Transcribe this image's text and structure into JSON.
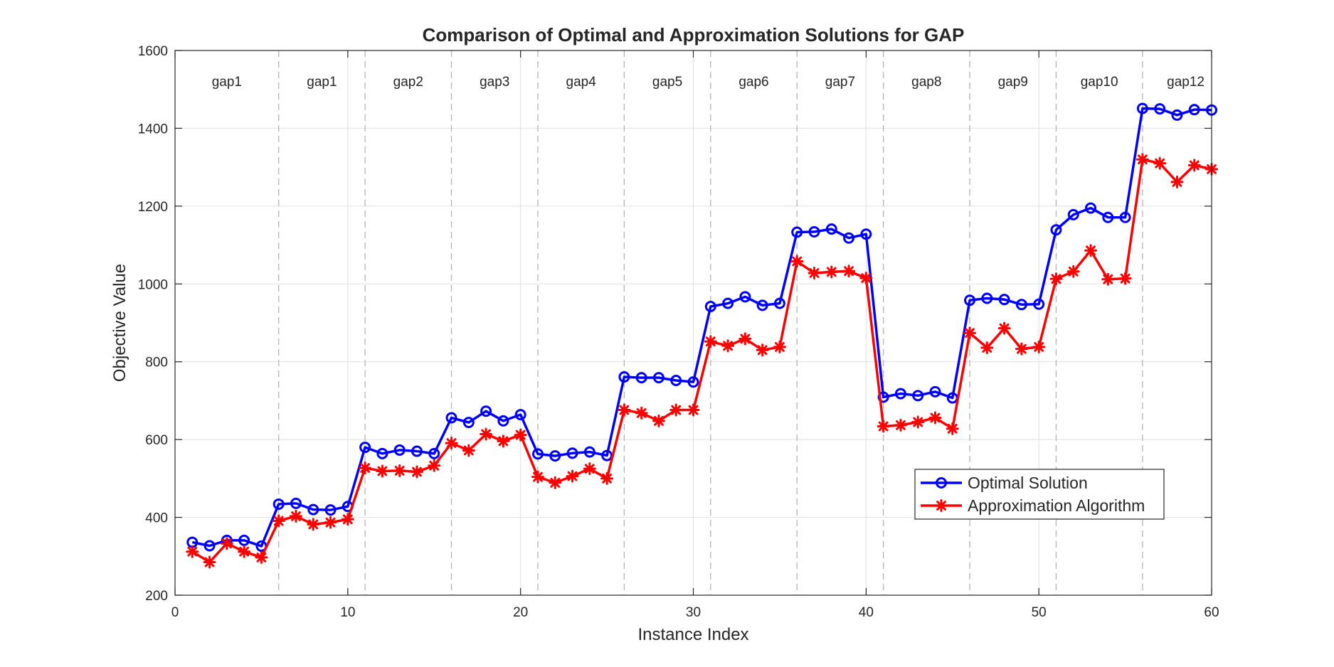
{
  "chart_data": {
    "type": "line",
    "title": "Comparison of Optimal and Approximation Solutions for GAP",
    "xlabel": "Instance Index",
    "ylabel": "Objective Value",
    "xlim": [
      0,
      60
    ],
    "ylim": [
      200,
      1600
    ],
    "xticks": [
      0,
      10,
      20,
      30,
      40,
      50,
      60
    ],
    "yticks": [
      200,
      400,
      600,
      800,
      1000,
      1200,
      1400,
      1600
    ],
    "grid": true,
    "legend_position": "lower-right",
    "group_separators": [
      6,
      11,
      16,
      21,
      26,
      31,
      36,
      41,
      46,
      51,
      56
    ],
    "group_labels": [
      {
        "label": "gap1",
        "x": 3
      },
      {
        "label": "gap1",
        "x": 8.5
      },
      {
        "label": "gap2",
        "x": 13.5
      },
      {
        "label": "gap3",
        "x": 18.5
      },
      {
        "label": "gap4",
        "x": 23.5
      },
      {
        "label": "gap5",
        "x": 28.5
      },
      {
        "label": "gap6",
        "x": 33.5
      },
      {
        "label": "gap7",
        "x": 38.5
      },
      {
        "label": "gap8",
        "x": 43.5
      },
      {
        "label": "gap9",
        "x": 48.5
      },
      {
        "label": "gap10",
        "x": 53.5
      },
      {
        "label": "gap12",
        "x": 58.5
      }
    ],
    "x": [
      1,
      2,
      3,
      4,
      5,
      6,
      7,
      8,
      9,
      10,
      11,
      12,
      13,
      14,
      15,
      16,
      17,
      18,
      19,
      20,
      21,
      22,
      23,
      24,
      25,
      26,
      27,
      28,
      29,
      30,
      31,
      32,
      33,
      34,
      35,
      36,
      37,
      38,
      39,
      40,
      41,
      42,
      43,
      44,
      45,
      46,
      47,
      48,
      49,
      50,
      51,
      52,
      53,
      54,
      55,
      56,
      57,
      58,
      59,
      60
    ],
    "series": [
      {
        "name": "Optimal Solution",
        "color": "#0000ff",
        "marker": "circle",
        "values": [
          336,
          327,
          341,
          341,
          326,
          434,
          436,
          420,
          419,
          428,
          580,
          564,
          573,
          570,
          564,
          656,
          644,
          673,
          648,
          664,
          563,
          558,
          565,
          568,
          559,
          761,
          759,
          759,
          752,
          748,
          942,
          950,
          967,
          945,
          950,
          1133,
          1134,
          1141,
          1118,
          1128,
          709,
          718,
          713,
          723,
          707,
          958,
          963,
          960,
          947,
          948,
          1139,
          1178,
          1195,
          1171,
          1171,
          1451,
          1450,
          1434,
          1448,
          1447
        ]
      },
      {
        "name": "Approximation Algorithm",
        "color": "#ff0000",
        "marker": "asterisk",
        "values": [
          312,
          285,
          333,
          312,
          297,
          391,
          403,
          382,
          387,
          395,
          527,
          519,
          520,
          517,
          533,
          591,
          572,
          614,
          596,
          612,
          504,
          489,
          506,
          525,
          500,
          676,
          668,
          648,
          676,
          676,
          852,
          841,
          859,
          830,
          838,
          1058,
          1028,
          1031,
          1033,
          1015,
          634,
          637,
          645,
          656,
          628,
          874,
          836,
          886,
          833,
          838,
          1013,
          1032,
          1086,
          1012,
          1014,
          1320,
          1310,
          1262,
          1305,
          1295
        ]
      }
    ]
  }
}
